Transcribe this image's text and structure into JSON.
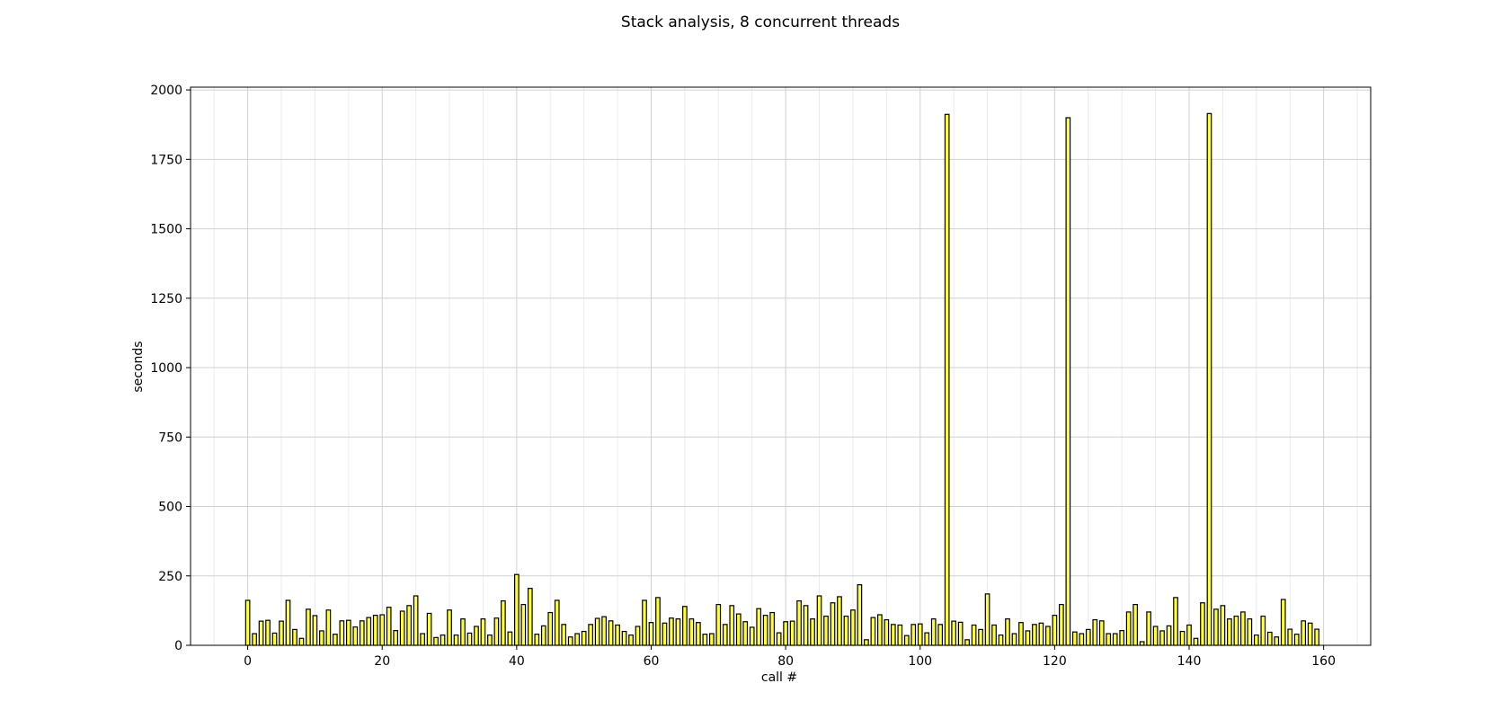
{
  "chart_data": {
    "type": "bar",
    "title": "Stack analysis, 8 concurrent threads",
    "xlabel": "call #",
    "ylabel": "seconds",
    "xlim": [
      -8.5,
      167.0
    ],
    "ylim": [
      0,
      2010
    ],
    "xticks": [
      0,
      20,
      40,
      60,
      80,
      100,
      120,
      140,
      160
    ],
    "yticks": [
      0,
      250,
      500,
      750,
      1000,
      1250,
      1500,
      1750,
      2000
    ],
    "x_minor_step": 5,
    "grid": true,
    "bar_color": "#ffff33",
    "edge_color": "#000000",
    "values": [
      162,
      42,
      87,
      90,
      44,
      87,
      162,
      57,
      25,
      130,
      107,
      52,
      127,
      40,
      88,
      90,
      66,
      88,
      100,
      108,
      110,
      137,
      53,
      123,
      143,
      178,
      42,
      115,
      28,
      37,
      127,
      37,
      95,
      44,
      68,
      95,
      37,
      98,
      160,
      48,
      255,
      147,
      205,
      40,
      70,
      118,
      162,
      75,
      30,
      42,
      50,
      75,
      97,
      103,
      88,
      73,
      50,
      37,
      68,
      162,
      82,
      172,
      80,
      98,
      95,
      140,
      95,
      82,
      40,
      42,
      147,
      75,
      143,
      113,
      85,
      65,
      132,
      108,
      118,
      45,
      85,
      87,
      160,
      143,
      95,
      178,
      105,
      153,
      175,
      105,
      127,
      218,
      20,
      100,
      110,
      92,
      75,
      73,
      35,
      75,
      77,
      45,
      95,
      75,
      1912,
      87,
      83,
      20,
      73,
      57,
      185,
      73,
      37,
      95,
      42,
      82,
      52,
      75,
      80,
      68,
      108,
      147,
      1900,
      48,
      42,
      57,
      92,
      88,
      42,
      42,
      53,
      120,
      147,
      13,
      120,
      68,
      52,
      70,
      172,
      50,
      73,
      25,
      153,
      1915,
      130,
      143,
      95,
      105,
      120,
      95,
      37,
      105,
      47,
      30,
      165,
      58,
      40,
      88,
      80,
      58
    ]
  }
}
